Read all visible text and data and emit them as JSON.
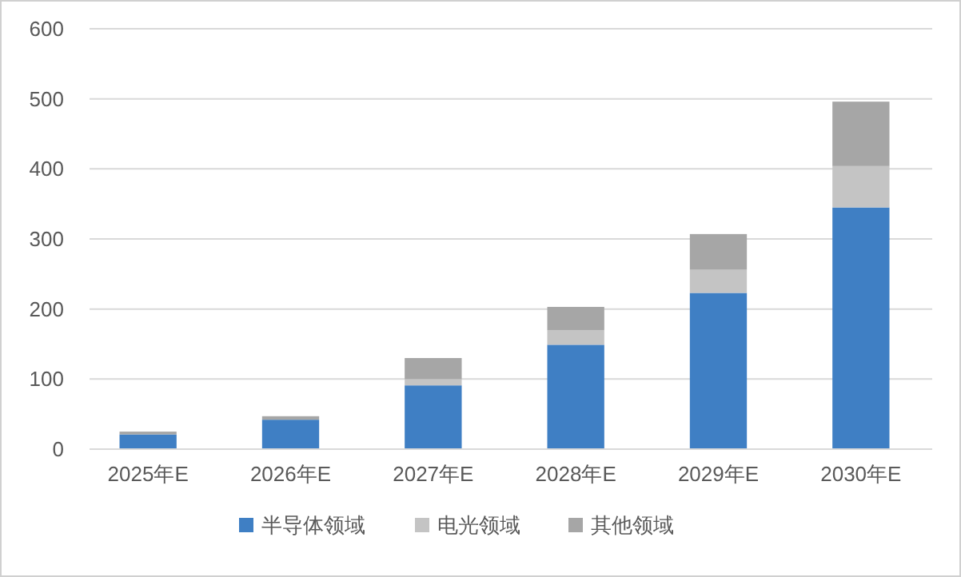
{
  "chart_data": {
    "type": "bar",
    "stacked": true,
    "categories": [
      "2025年E",
      "2026年E",
      "2027年E",
      "2028年E",
      "2029年E",
      "2030年E"
    ],
    "series": [
      {
        "name": "半导体领域",
        "color": "#3f7fc4",
        "values": [
          21,
          42,
          91,
          149,
          223,
          345
        ]
      },
      {
        "name": "电光领域",
        "color": "#c4c4c4",
        "values": [
          null,
          null,
          9,
          21,
          33,
          59
        ]
      },
      {
        "name": "其他领域",
        "color": "#a6a6a6",
        "values": [
          4,
          5,
          30,
          33,
          51,
          92
        ]
      }
    ],
    "ylim": [
      0,
      600
    ],
    "yticks": [
      0,
      100,
      200,
      300,
      400,
      500,
      600
    ],
    "grid": "y",
    "legend": "bottom"
  }
}
